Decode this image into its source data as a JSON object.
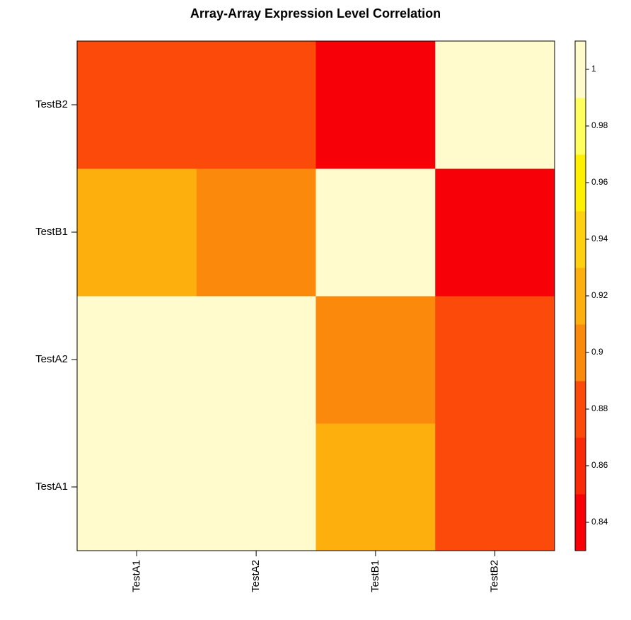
{
  "chart_data": {
    "type": "heatmap",
    "title": "Array-Array Expression Level Correlation",
    "x_categories": [
      "TestA1",
      "TestA2",
      "TestB1",
      "TestB2"
    ],
    "y_categories": [
      "TestA1",
      "TestA2",
      "TestB1",
      "TestB2"
    ],
    "values": [
      [
        1,
        1,
        0.92,
        0.88
      ],
      [
        1,
        1,
        0.9,
        0.88
      ],
      [
        0.92,
        0.9,
        1,
        0.84
      ],
      [
        0.88,
        0.88,
        0.84,
        1
      ]
    ],
    "color_breaks": [
      0.83,
      0.85,
      0.87,
      0.89,
      0.91,
      0.93,
      0.95,
      0.97,
      0.99,
      1.01
    ],
    "colors": [
      "#F70008",
      "#FA2A08",
      "#FB4A0A",
      "#FB8A0C",
      "#FDAF0D",
      "#FFD010",
      "#FFF000",
      "#FFFF60",
      "#FFFBCC"
    ],
    "zlim": [
      0.83,
      1.01
    ],
    "zticks": [
      0.84,
      0.86,
      0.88,
      0.9,
      0.92,
      0.94,
      0.96,
      0.98,
      1
    ]
  }
}
